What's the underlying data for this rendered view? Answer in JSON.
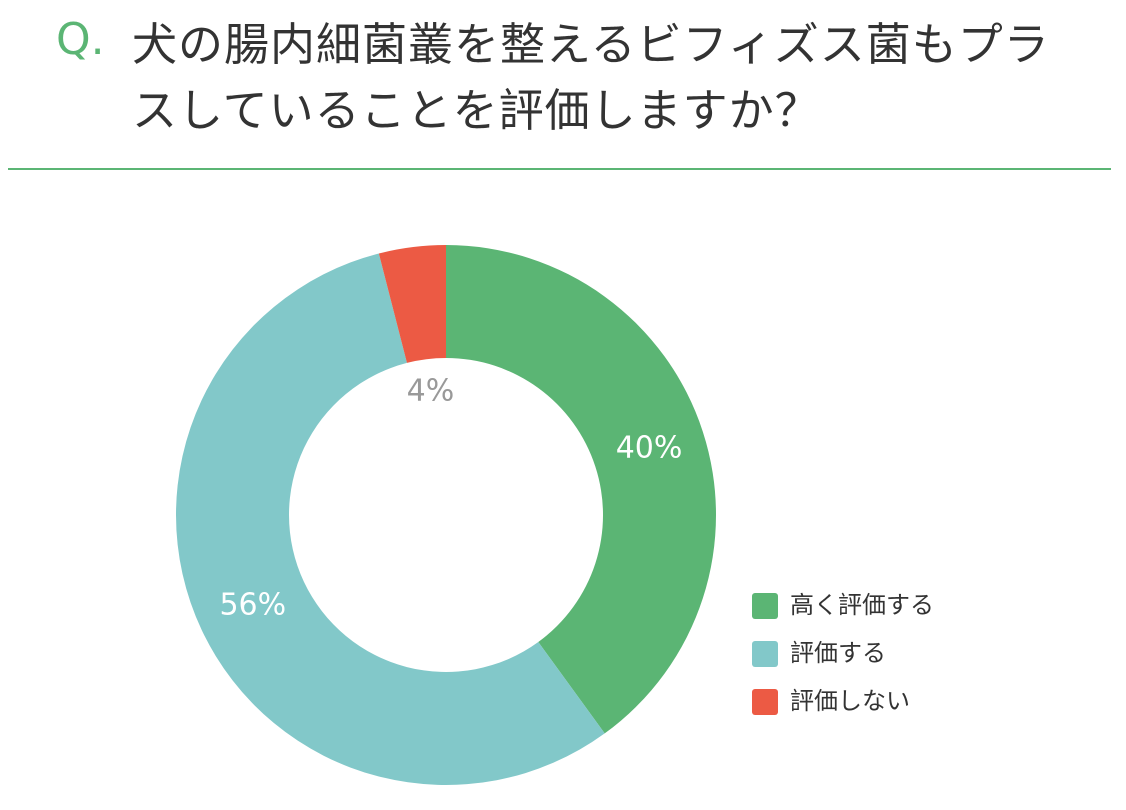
{
  "chart_data": {
    "type": "donut",
    "question_marker": "Q.",
    "title": "犬の腸内細菌叢を整えるビフィズス菌もプラスしていることを評価しますか？",
    "categories": [
      "高く評価する",
      "評価する",
      "評価しない"
    ],
    "values": [
      40,
      56,
      4
    ],
    "value_labels": [
      "40%",
      "56%",
      "4%"
    ],
    "colors": [
      "#5bb574",
      "#82c8c9",
      "#ec5a44"
    ],
    "legend": "right"
  }
}
